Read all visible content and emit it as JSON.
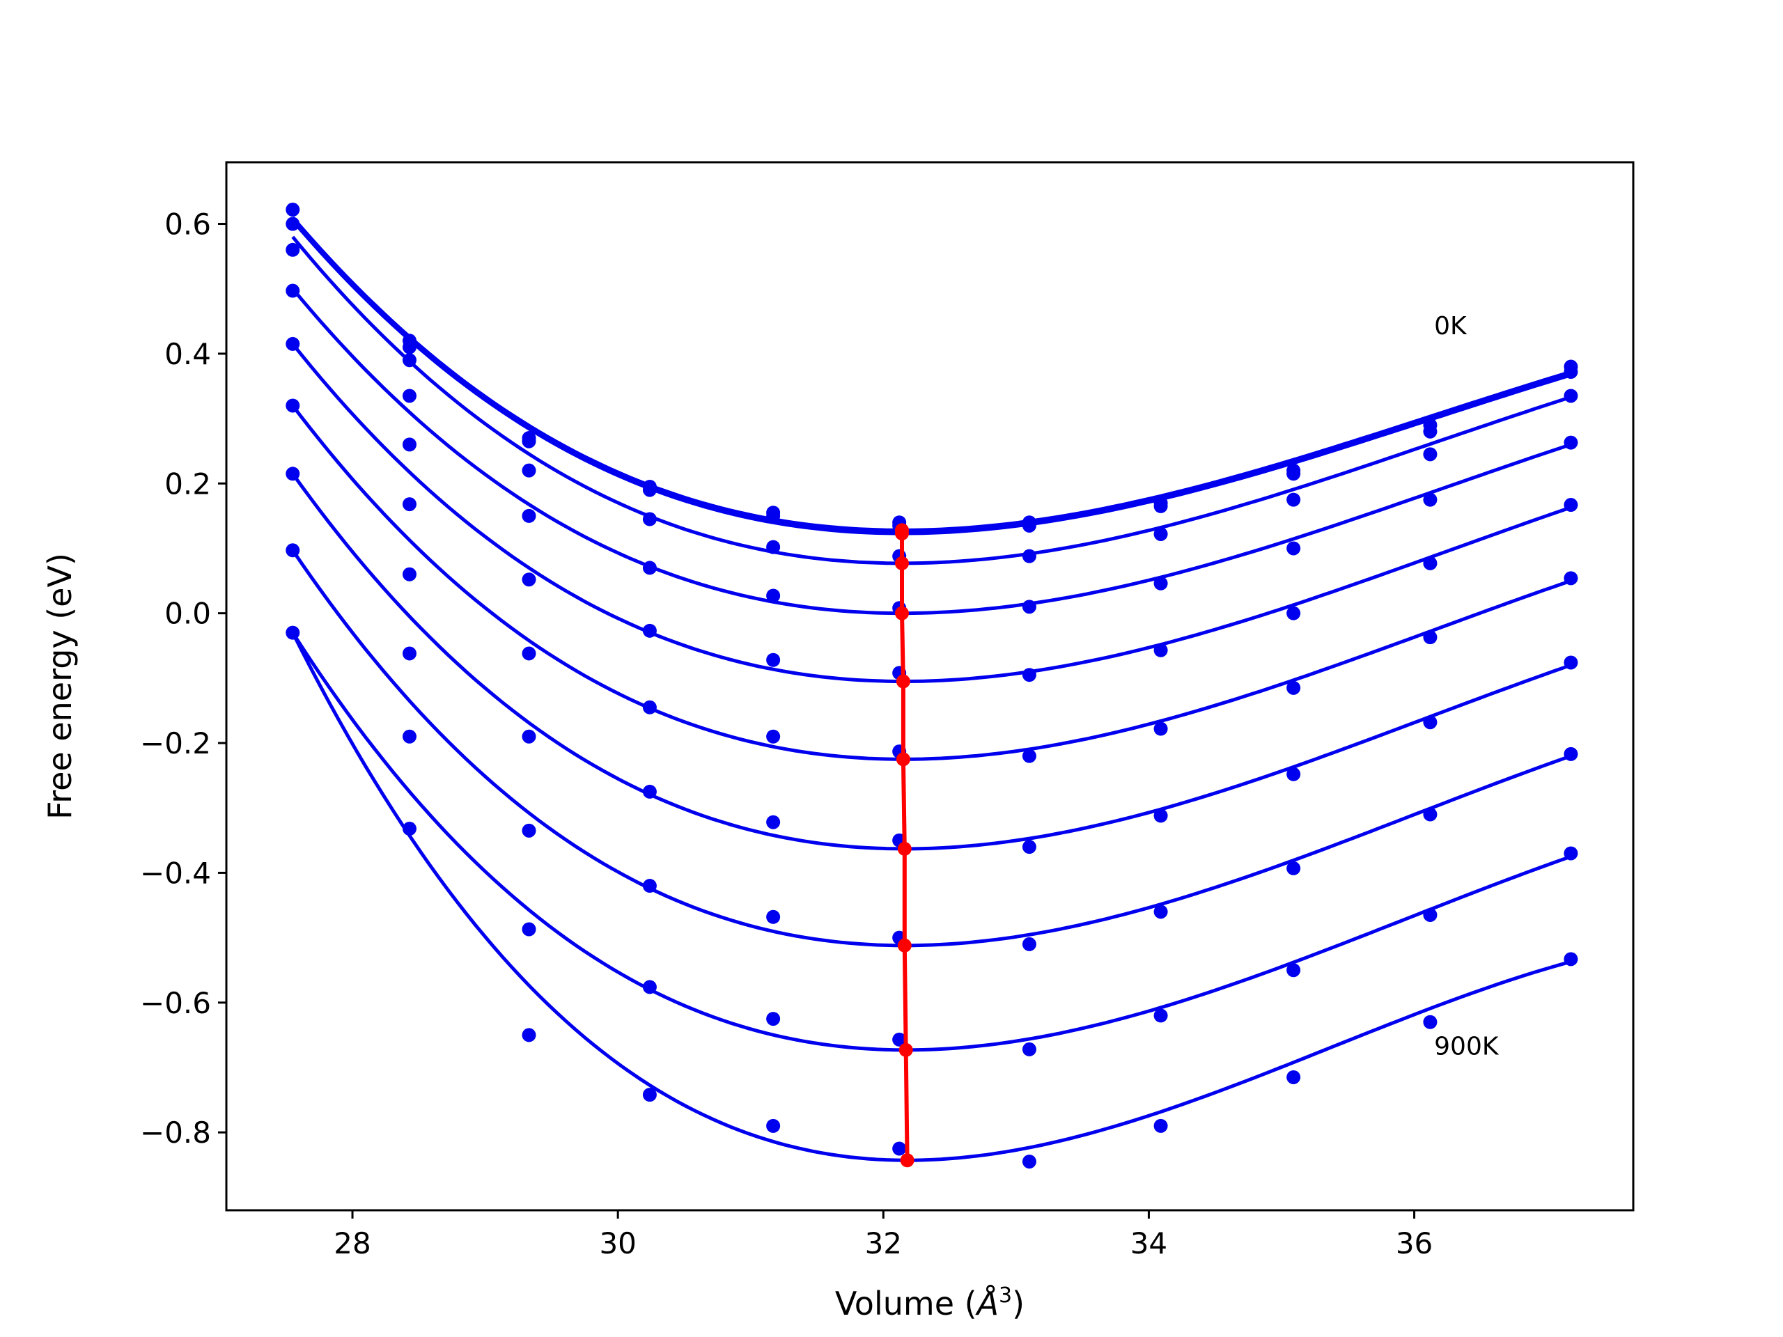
{
  "chart_data": {
    "type": "scatter",
    "title": "",
    "xlabel": "Volume (",
    "xlabel_unit": "Å",
    "xlabel_sup": "3",
    "xlabel_close": ")",
    "ylabel": "Free energy (eV)",
    "xlim": [
      27.05,
      37.65
    ],
    "ylim": [
      -0.92,
      0.695
    ],
    "x_ticks": [
      28,
      30,
      32,
      34,
      36
    ],
    "x_tick_labels": [
      "28",
      "30",
      "32",
      "34",
      "36"
    ],
    "y_ticks": [
      0.6,
      0.4,
      0.2,
      0.0,
      -0.2,
      -0.4,
      -0.6,
      -0.8
    ],
    "y_tick_labels": [
      "0.6",
      "0.4",
      "0.2",
      "0.0",
      "−0.2",
      "−0.4",
      "−0.6",
      "−0.8"
    ],
    "grid": false,
    "series_color": "#0000ee",
    "min_line_color": "#ff0000",
    "annotations": [
      {
        "text": "0K",
        "x": 36.15,
        "y": 0.43
      },
      {
        "text": "900K",
        "x": 36.15,
        "y": -0.68
      }
    ],
    "volumes": [
      27.55,
      28.43,
      29.33,
      30.24,
      31.17,
      32.12,
      33.1,
      34.09,
      35.09,
      36.12,
      37.18
    ],
    "series": [
      {
        "points": [
          0.622,
          0.42,
          0.27,
          0.19,
          0.155,
          0.14,
          0.14,
          0.17,
          0.22,
          0.29,
          0.38
        ],
        "fit_min": [
          32.14,
          0.128
        ],
        "fit_ends": [
          0.61,
          0.372
        ]
      },
      {
        "points": [
          0.6,
          0.41,
          0.265,
          0.195,
          0.15,
          0.135,
          0.135,
          0.165,
          0.215,
          0.28,
          0.372
        ],
        "fit_min": [
          32.14,
          0.123
        ],
        "fit_ends": [
          0.605,
          0.367
        ]
      },
      {
        "points": [
          0.56,
          0.39,
          0.22,
          0.145,
          0.102,
          0.088,
          0.088,
          0.122,
          0.175,
          0.245,
          0.335
        ],
        "fit_min": [
          32.14,
          0.077
        ],
        "fit_ends": [
          0.58,
          0.333
        ]
      },
      {
        "points": [
          0.497,
          0.335,
          0.15,
          0.07,
          0.027,
          0.008,
          0.01,
          0.046,
          0.1,
          0.175,
          0.263
        ],
        "fit_min": [
          32.14,
          0.0
        ],
        "fit_ends": [
          0.5,
          0.26
        ]
      },
      {
        "points": [
          0.415,
          0.26,
          0.052,
          -0.027,
          -0.072,
          -0.092,
          -0.095,
          -0.057,
          0.0,
          0.077,
          0.167
        ],
        "fit_min": [
          32.15,
          -0.105
        ],
        "fit_ends": [
          0.415,
          0.163
        ]
      },
      {
        "points": [
          0.32,
          0.168,
          -0.062,
          -0.145,
          -0.19,
          -0.213,
          -0.22,
          -0.178,
          -0.115,
          -0.037,
          0.054
        ],
        "fit_min": [
          32.15,
          -0.225
        ],
        "fit_ends": [
          0.32,
          0.05
        ]
      },
      {
        "points": [
          0.215,
          0.06,
          -0.19,
          -0.275,
          -0.322,
          -0.35,
          -0.36,
          -0.312,
          -0.248,
          -0.168,
          -0.076
        ],
        "fit_min": [
          32.16,
          -0.363
        ],
        "fit_ends": [
          0.215,
          -0.08
        ]
      },
      {
        "points": [
          0.097,
          -0.062,
          -0.335,
          -0.42,
          -0.468,
          -0.5,
          -0.51,
          -0.46,
          -0.393,
          -0.31,
          -0.217
        ],
        "fit_min": [
          32.16,
          -0.512
        ],
        "fit_ends": [
          0.097,
          -0.22
        ]
      },
      {
        "points": [
          -0.03,
          -0.19,
          -0.487,
          -0.576,
          -0.625,
          -0.657,
          -0.672,
          -0.62,
          -0.55,
          -0.465,
          -0.37
        ],
        "fit_min": [
          32.17,
          -0.673
        ],
        "fit_ends": [
          -0.03,
          -0.375
        ]
      },
      {
        "points": [
          null,
          -0.332,
          -0.65,
          -0.742,
          -0.79,
          -0.825,
          -0.845,
          -0.79,
          -0.715,
          -0.63,
          -0.533
        ],
        "fit_min": [
          32.18,
          -0.843
        ],
        "fit_ends": [
          -0.03,
          -0.537
        ]
      }
    ]
  }
}
